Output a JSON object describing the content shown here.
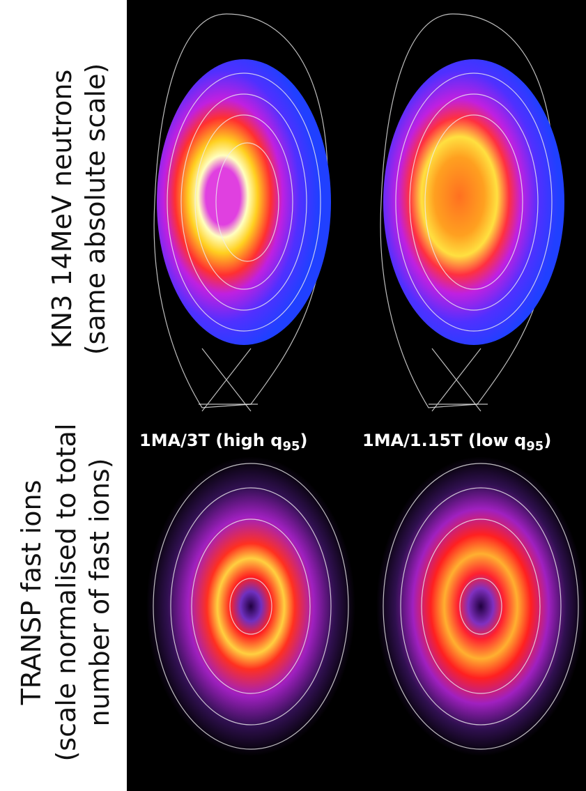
{
  "top_row": {
    "label_line_1": "KN3 14MeV neutrons",
    "label_line_2": "(same absolute scale)"
  },
  "bottom_row": {
    "label_line_1": "TRANSP fast ions",
    "label_line_2": "(scale normalised to total",
    "label_line_3": "number of fast ions)"
  },
  "columns": [
    {
      "caption": "1MA/3T (high q",
      "caption_subscript": "95",
      "caption_end": ")"
    },
    {
      "caption": "1MA/1.15T (low q",
      "caption_subscript": "95",
      "caption_end": ")"
    }
  ]
}
